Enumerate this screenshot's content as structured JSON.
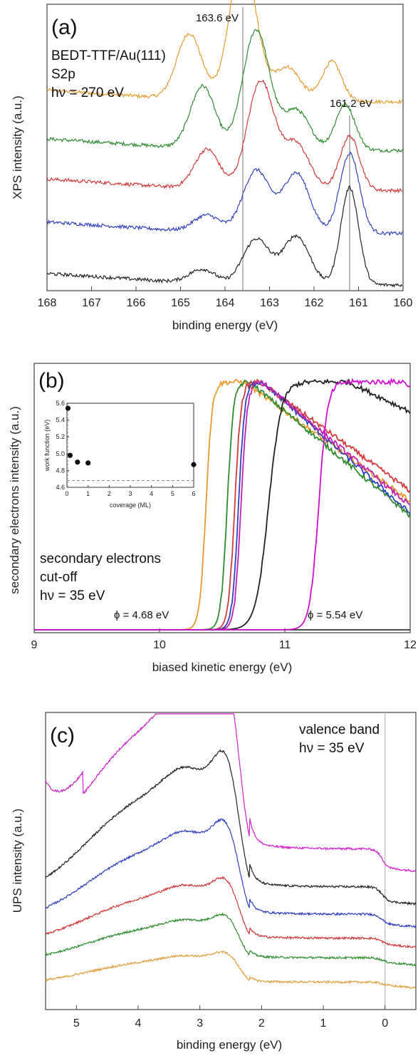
{
  "chart_data": [
    {
      "panel": "(a)",
      "type": "line",
      "xlabel": "binding energy (eV)",
      "ylabel": "XPS intensity (a.u.)",
      "xlim": [
        168,
        160
      ],
      "x_reversed": true,
      "xticks": [
        "168",
        "167",
        "166",
        "165",
        "164",
        "163",
        "162",
        "161",
        "160"
      ],
      "annotations": [
        "BEDT-TTF/Au(111)",
        "S2p",
        "hν = 270 eV"
      ],
      "reference_lines": [
        {
          "x": 163.6,
          "label": "163.6 eV"
        },
        {
          "x": 161.2,
          "label": "161.2 eV"
        }
      ],
      "series": [
        {
          "color": "#E69A2E",
          "offset": 0.66,
          "peaks": [
            [
              164.8,
              0.23,
              0.28
            ],
            [
              163.6,
              0.5,
              0.3
            ],
            [
              162.6,
              0.12,
              0.3
            ],
            [
              161.6,
              0.14,
              0.22
            ]
          ]
        },
        {
          "color": "#2E8B2E",
          "offset": 0.49,
          "peaks": [
            [
              164.5,
              0.22,
              0.28
            ],
            [
              163.3,
              0.42,
              0.3
            ],
            [
              162.4,
              0.14,
              0.3
            ],
            [
              161.3,
              0.16,
              0.22
            ]
          ]
        },
        {
          "color": "#D03A3A",
          "offset": 0.35,
          "peaks": [
            [
              164.4,
              0.14,
              0.28
            ],
            [
              163.2,
              0.38,
              0.3
            ],
            [
              162.4,
              0.16,
              0.3
            ],
            [
              161.2,
              0.19,
              0.22
            ]
          ]
        },
        {
          "color": "#3040C0",
          "offset": 0.2,
          "peaks": [
            [
              164.4,
              0.06,
              0.3
            ],
            [
              163.3,
              0.22,
              0.3
            ],
            [
              162.4,
              0.21,
              0.3
            ],
            [
              161.2,
              0.28,
              0.22
            ]
          ]
        },
        {
          "color": "#222222",
          "offset": 0.02,
          "peaks": [
            [
              164.5,
              0.05,
              0.3
            ],
            [
              163.3,
              0.16,
              0.3
            ],
            [
              162.4,
              0.17,
              0.3
            ],
            [
              161.2,
              0.34,
              0.2
            ]
          ]
        }
      ]
    },
    {
      "panel": "(b)",
      "type": "line",
      "xlabel": "biased kinetic energy (eV)",
      "ylabel": "secondary electrons intensity (a.u.)",
      "xlim": [
        9,
        12
      ],
      "xticks": [
        "9",
        "10",
        "11",
        "12"
      ],
      "annotations": [
        "secondary electrons",
        "cut-off",
        "hν = 35 eV"
      ],
      "labels": [
        {
          "text": "ϕ = 4.68 eV",
          "x": 9.9
        },
        {
          "text": "ϕ = 5.54 eV",
          "x": 11.45
        }
      ],
      "series": [
        {
          "color": "#E69A2E",
          "onset": 10.3,
          "peak_x": 10.67,
          "end_value": 0.52
        },
        {
          "color": "#2E8B2E",
          "onset": 10.47,
          "peak_x": 10.72,
          "end_value": 0.46
        },
        {
          "color": "#D03A3A",
          "onset": 10.53,
          "peak_x": 10.8,
          "end_value": 0.56
        },
        {
          "color": "#3040C0",
          "onset": 10.56,
          "peak_x": 10.82,
          "end_value": 0.47
        },
        {
          "color": "#C020B0",
          "onset": 10.58,
          "peak_x": 10.82,
          "end_value": 0.5
        },
        {
          "color": "#222222",
          "onset": 10.8,
          "peak_x": 11.5,
          "end_value": 0.88
        },
        {
          "color": "#D010D0",
          "onset": 11.2,
          "peak_x": 11.95,
          "end_value": 0.98
        }
      ],
      "inset": {
        "type": "scatter",
        "xlabel": "coverage (ML)",
        "ylabel": "work function (eV)",
        "xlim": [
          0,
          6
        ],
        "ylim": [
          4.6,
          5.6
        ],
        "xticks": [
          "0",
          "1",
          "2",
          "3",
          "4",
          "5",
          "6"
        ],
        "yticks": [
          "4.6",
          "4.8",
          "5.0",
          "5.2",
          "5.4",
          "5.6"
        ],
        "points": [
          [
            0.05,
            5.54
          ],
          [
            0.15,
            4.98
          ],
          [
            0.5,
            4.9
          ],
          [
            1.0,
            4.89
          ],
          [
            6.0,
            4.87
          ]
        ],
        "reference_y": 4.68
      }
    },
    {
      "panel": "(c)",
      "type": "line",
      "xlabel": "binding energy (eV)",
      "ylabel": "UPS intensity (a.u.)",
      "xlim": [
        5.5,
        -0.5
      ],
      "x_reversed": true,
      "xticks": [
        "5",
        "4",
        "3",
        "2",
        "1",
        "0"
      ],
      "annotations": [
        "valence band",
        "hν = 35 eV"
      ],
      "reference_lines": [
        {
          "x": 0
        }
      ],
      "series": [
        {
          "color": "#E0A040",
          "base": 0.0,
          "scale": 0.16
        },
        {
          "color": "#2E8B2E",
          "base": 0.09,
          "scale": 0.23
        },
        {
          "color": "#D03A3A",
          "base": 0.16,
          "scale": 0.32
        },
        {
          "color": "#3040C0",
          "base": 0.24,
          "scale": 0.5
        },
        {
          "color": "#222222",
          "base": 0.33,
          "scale": 0.72
        },
        {
          "color": "#D020D0",
          "base": 0.46,
          "scale": 0.96
        }
      ]
    }
  ]
}
